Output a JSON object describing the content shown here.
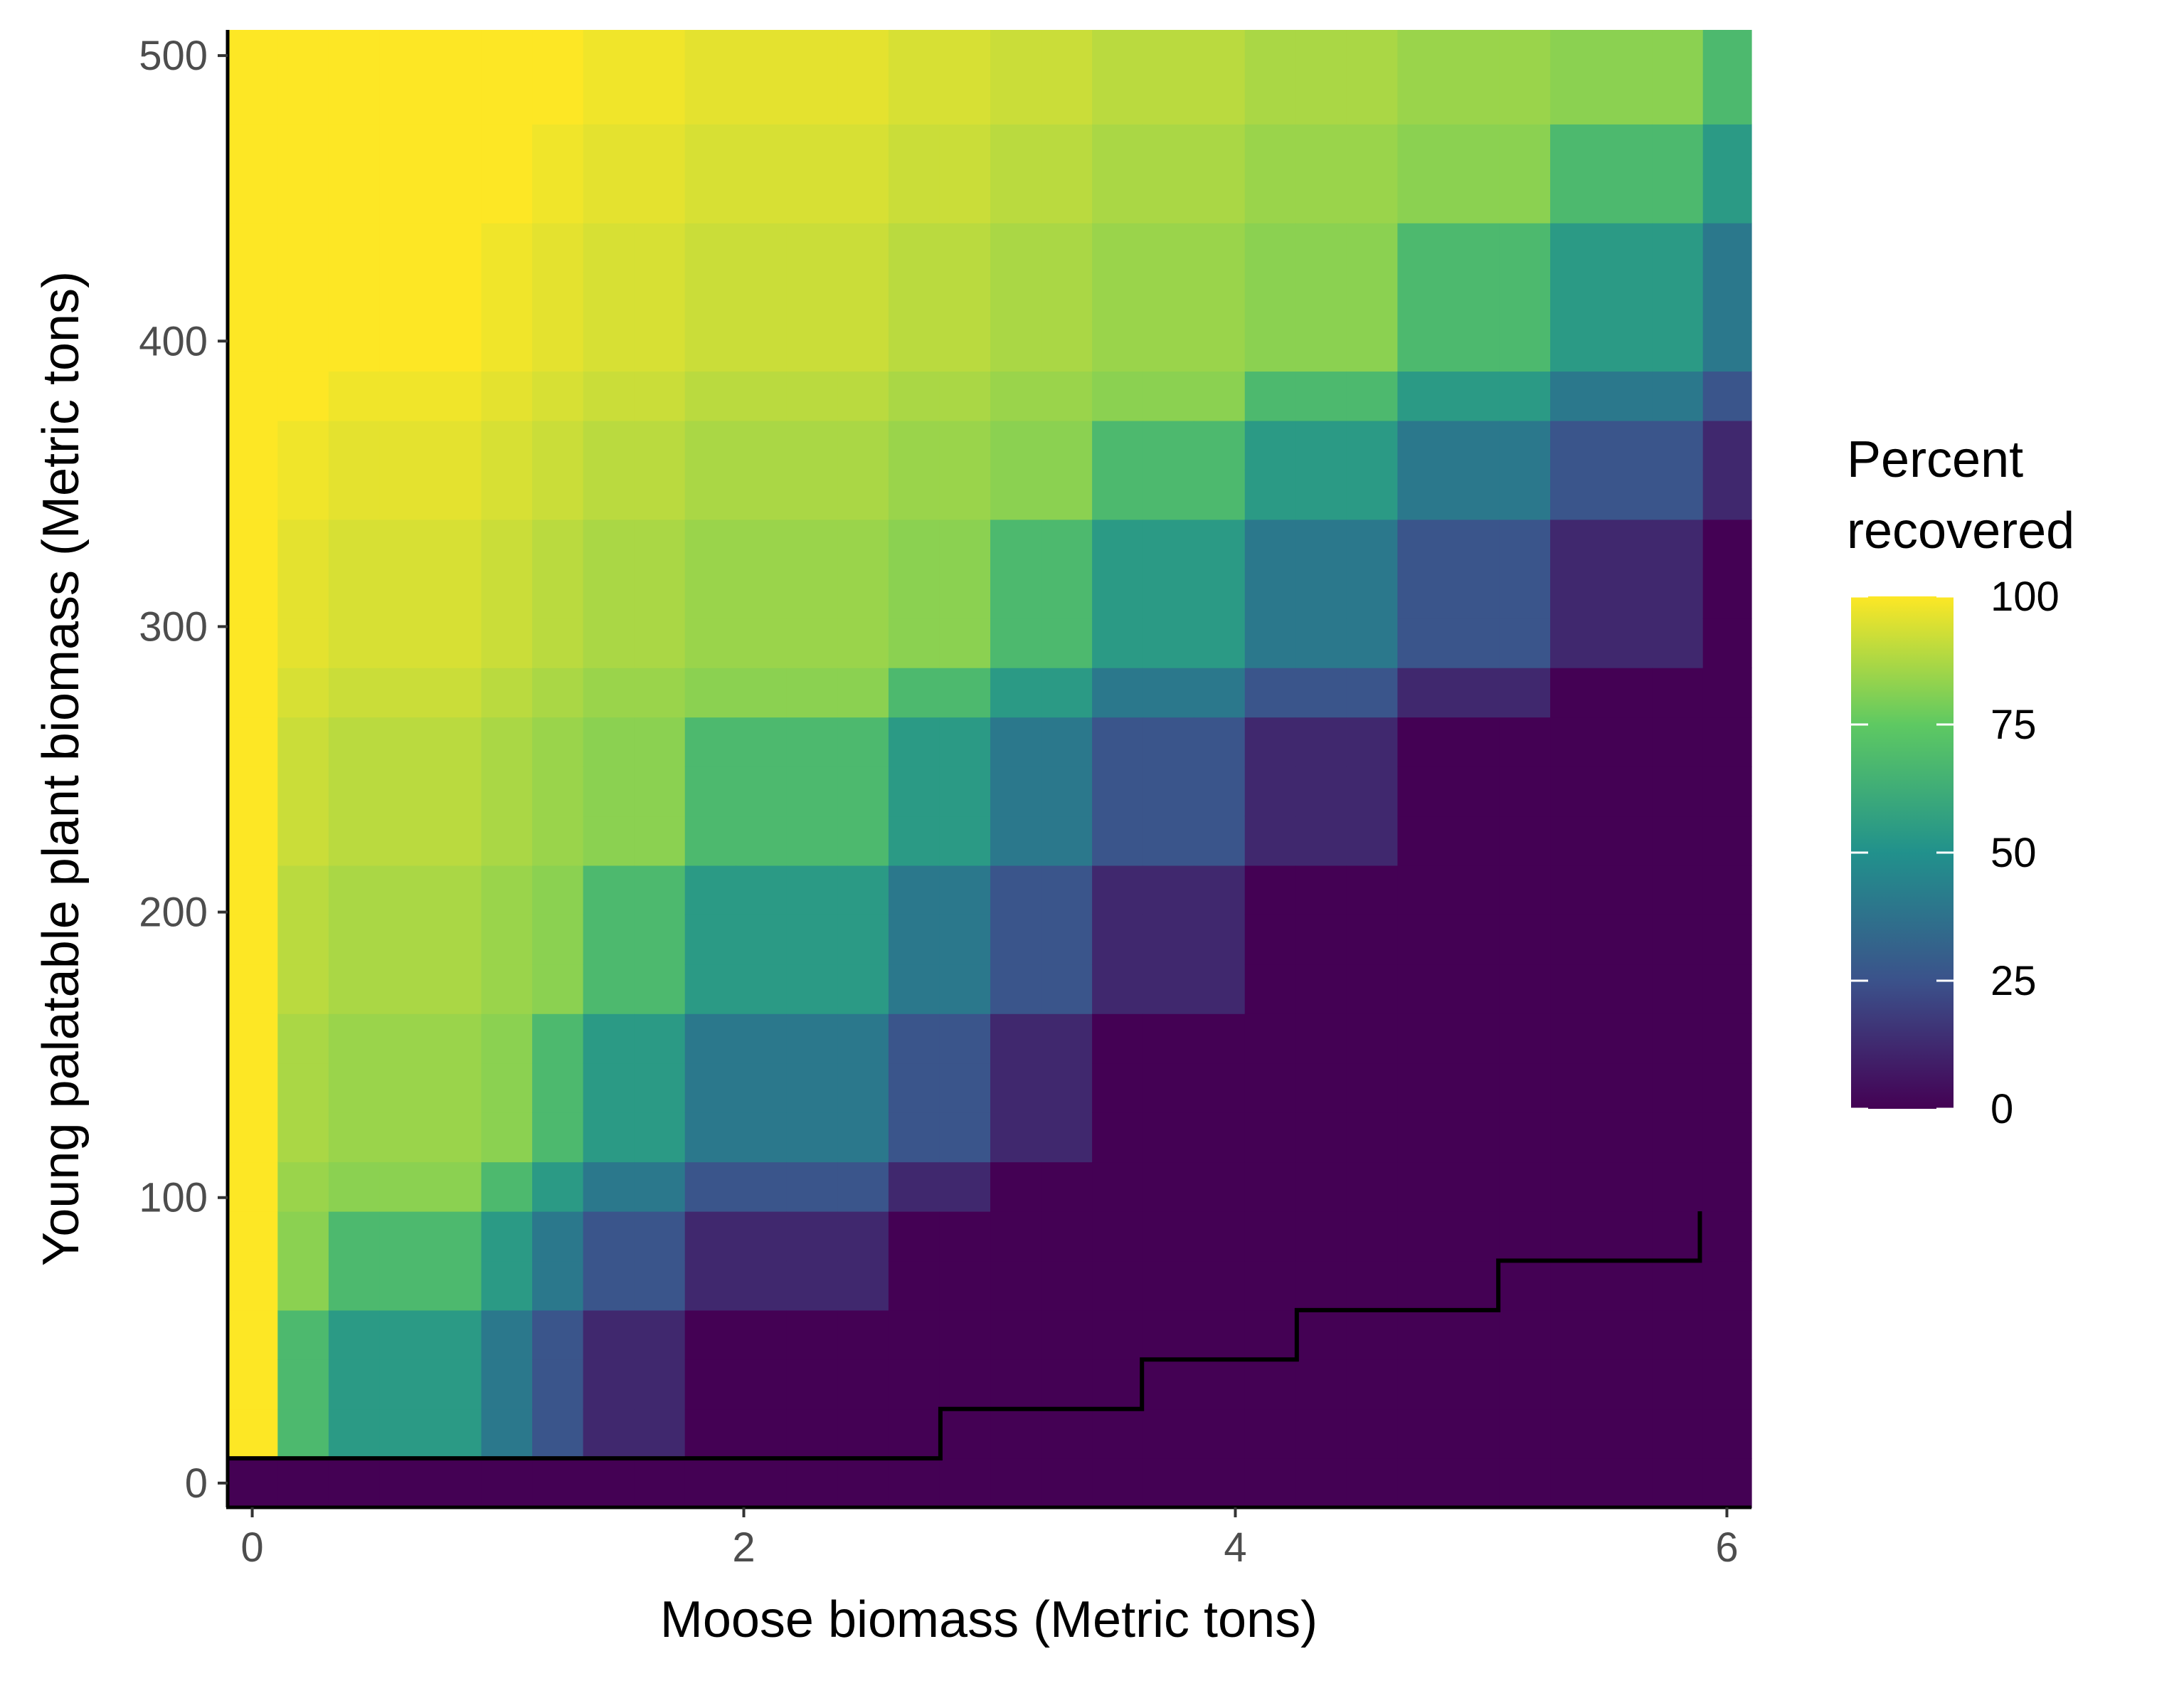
{
  "chart_data": {
    "type": "heatmap",
    "xlabel": "Moose biomass (Metric tons)",
    "ylabel": "Young palatable plant biomass (Metric tons)",
    "xlim": [
      -0.1,
      6.1
    ],
    "ylim": [
      -8.5,
      509
    ],
    "x_ticks": [
      0,
      2,
      4,
      6
    ],
    "y_ticks": [
      0,
      100,
      200,
      300,
      400,
      500
    ],
    "legend": {
      "title_lines": [
        "Percent",
        "recovered"
      ],
      "ticks": [
        0,
        25,
        50,
        75,
        100
      ],
      "range": [
        0,
        100
      ],
      "colors": [
        "#440154",
        "#3b528b",
        "#21918c",
        "#5ec962",
        "#fde725"
      ],
      "position": "right"
    },
    "grid": false,
    "x_cells": {
      "start": 0.0,
      "step": 0.2071,
      "count": 30
    },
    "y_cells": {
      "start": 0,
      "step": 17.31,
      "count": 30
    },
    "zones": {
      "x_bounds": [
        0.0,
        0.21,
        0.84,
        1.06,
        1.27,
        1.69,
        2.53,
        2.95,
        3.37,
        4.0,
        4.63,
        5.26,
        5.89
      ],
      "y_bounds": [
        52,
        87,
        121,
        156,
        208,
        260,
        294,
        329,
        364,
        398,
        433,
        468,
        502
      ]
    },
    "contour_50pct": [
      [
        2.8,
        8.66
      ],
      [
        2.8,
        25.97
      ],
      [
        3.62,
        25.97
      ],
      [
        3.62,
        43.28
      ],
      [
        4.25,
        43.28
      ],
      [
        4.25,
        60.59
      ],
      [
        5.07,
        60.59
      ],
      [
        5.07,
        77.9
      ],
      [
        5.89,
        77.9
      ],
      [
        5.89,
        95.21
      ]
    ]
  }
}
